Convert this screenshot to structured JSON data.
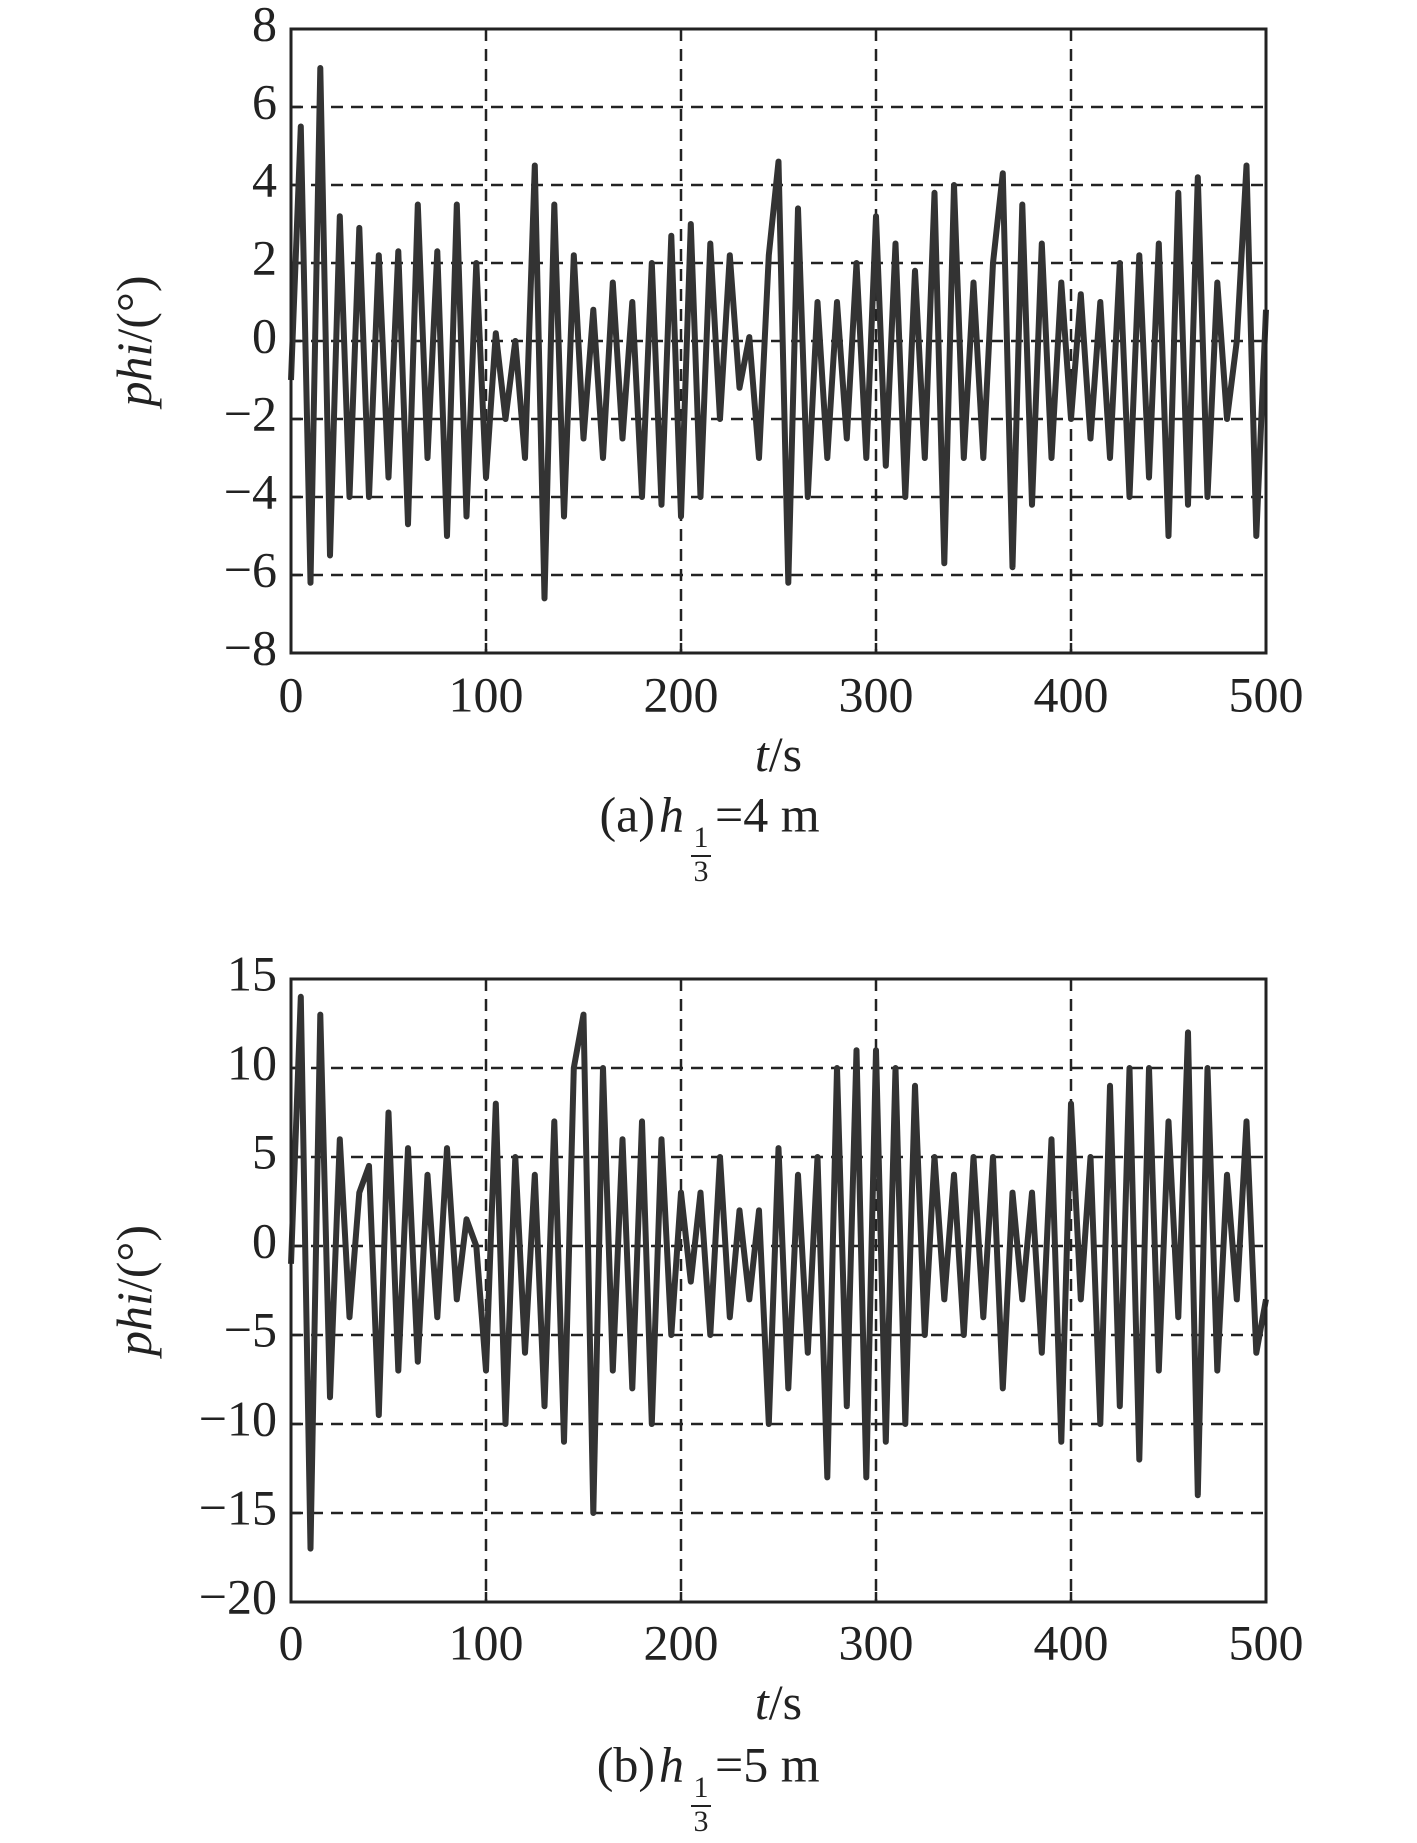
{
  "chart_data": [
    {
      "type": "line",
      "caption": {
        "prefix": "(a) ",
        "var": "h",
        "sub_num": "1",
        "sub_den": "3",
        "suffix": "=4 m"
      },
      "xlabel": {
        "var": "t",
        "unit": "/s"
      },
      "ylabel": {
        "var": "phi",
        "unit": "/(°)"
      },
      "xlim": [
        0,
        500
      ],
      "xticks": [
        0,
        100,
        200,
        300,
        400,
        500
      ],
      "ylim": [
        -8,
        8
      ],
      "yticks": [
        {
          "value": -8,
          "label": "−8"
        },
        {
          "value": -6,
          "label": "−6"
        },
        {
          "value": -4,
          "label": "−4"
        },
        {
          "value": -2,
          "label": "−2"
        },
        0,
        2,
        4,
        6,
        8
      ],
      "grid": true,
      "x": [
        0,
        5,
        10,
        15,
        20,
        25,
        30,
        35,
        40,
        45,
        50,
        55,
        60,
        65,
        70,
        75,
        80,
        85,
        90,
        95,
        100,
        105,
        110,
        115,
        120,
        125,
        130,
        135,
        140,
        145,
        150,
        155,
        160,
        165,
        170,
        175,
        180,
        185,
        190,
        195,
        200,
        205,
        210,
        215,
        220,
        225,
        230,
        235,
        240,
        245,
        250,
        255,
        260,
        265,
        270,
        275,
        280,
        285,
        290,
        295,
        300,
        305,
        310,
        315,
        320,
        325,
        330,
        335,
        340,
        345,
        350,
        355,
        360,
        365,
        370,
        375,
        380,
        385,
        390,
        395,
        400,
        405,
        410,
        415,
        420,
        425,
        430,
        435,
        440,
        445,
        450,
        455,
        460,
        465,
        470,
        475,
        480,
        485,
        490,
        495,
        500
      ],
      "series": [
        {
          "color": "#333333",
          "values": [
            -1,
            5.5,
            -6.2,
            7,
            -5.5,
            3.2,
            -4,
            2.9,
            -4,
            2.2,
            -3.5,
            2.3,
            -4.7,
            3.5,
            -3,
            2.3,
            -5,
            3.5,
            -4.5,
            2,
            -3.5,
            0.2,
            -2,
            0,
            -3,
            4.5,
            -6.6,
            3.5,
            -4.5,
            2.2,
            -2.5,
            0.8,
            -3,
            1.5,
            -2.5,
            1,
            -4,
            2,
            -4.2,
            2.7,
            -4.5,
            3,
            -4,
            2.5,
            -2,
            2.2,
            -1.2,
            0.1,
            -3,
            2.2,
            4.6,
            -6.2,
            3.4,
            -4,
            1,
            -3,
            1,
            -2.5,
            2,
            -3,
            3.2,
            -3.2,
            2.5,
            -4,
            1.8,
            -3,
            3.8,
            -5.7,
            4,
            -3,
            1.5,
            -3,
            2,
            4.3,
            -5.8,
            3.5,
            -4.2,
            2.5,
            -3,
            1.5,
            -2,
            1.2,
            -2.5,
            1,
            -3,
            2,
            -4,
            2.2,
            -3.5,
            2.5,
            -5,
            3.8,
            -4.2,
            4.2,
            -4,
            1.5,
            -2,
            0,
            4.5,
            -5,
            0.8
          ]
        }
      ]
    },
    {
      "type": "line",
      "caption": {
        "prefix": "(b) ",
        "var": "h",
        "sub_num": "1",
        "sub_den": "3",
        "suffix": "=5 m"
      },
      "xlabel": {
        "var": "t",
        "unit": "/s"
      },
      "ylabel": {
        "var": "phi",
        "unit": "/(°)"
      },
      "xlim": [
        0,
        500
      ],
      "xticks": [
        0,
        100,
        200,
        300,
        400,
        500
      ],
      "ylim": [
        -20,
        15
      ],
      "yticks": [
        {
          "value": -20,
          "label": "−20"
        },
        {
          "value": -15,
          "label": "−15"
        },
        {
          "value": -10,
          "label": "−10"
        },
        {
          "value": -5,
          "label": "−5"
        },
        0,
        5,
        10,
        15
      ],
      "grid": true,
      "x": [
        0,
        5,
        10,
        15,
        20,
        25,
        30,
        35,
        40,
        45,
        50,
        55,
        60,
        65,
        70,
        75,
        80,
        85,
        90,
        95,
        100,
        105,
        110,
        115,
        120,
        125,
        130,
        135,
        140,
        145,
        150,
        155,
        160,
        165,
        170,
        175,
        180,
        185,
        190,
        195,
        200,
        205,
        210,
        215,
        220,
        225,
        230,
        235,
        240,
        245,
        250,
        255,
        260,
        265,
        270,
        275,
        280,
        285,
        290,
        295,
        300,
        305,
        310,
        315,
        320,
        325,
        330,
        335,
        340,
        345,
        350,
        355,
        360,
        365,
        370,
        375,
        380,
        385,
        390,
        395,
        400,
        405,
        410,
        415,
        420,
        425,
        430,
        435,
        440,
        445,
        450,
        455,
        460,
        465,
        470,
        475,
        480,
        485,
        490,
        495,
        500
      ],
      "series": [
        {
          "color": "#333333",
          "values": [
            -1,
            14,
            -17,
            13,
            -8.5,
            6,
            -4,
            3,
            4.5,
            -9.5,
            7.5,
            -7,
            5.5,
            -6.5,
            4,
            -4,
            5.5,
            -3,
            1.5,
            0,
            -7,
            8,
            -10,
            5,
            -6,
            4,
            -9,
            7,
            -11,
            10,
            13,
            -15,
            10,
            -7,
            6,
            -8,
            7,
            -10,
            6,
            -5,
            3,
            -2,
            3,
            -5,
            5,
            -4,
            2,
            -3,
            2,
            -10,
            5.5,
            -8,
            4,
            -6,
            5,
            -13,
            10,
            -9,
            11,
            -13,
            11,
            -11,
            10,
            -10,
            9,
            -5,
            5,
            -3,
            4,
            -5,
            5,
            -4,
            5,
            -8,
            3,
            -3,
            3,
            -6,
            6,
            -11,
            8,
            -3,
            5,
            -10,
            9,
            -9,
            10,
            -12,
            10,
            -7,
            7,
            -4,
            12,
            -14,
            10,
            -7,
            4,
            -3,
            7,
            -6,
            -3
          ]
        }
      ]
    }
  ]
}
